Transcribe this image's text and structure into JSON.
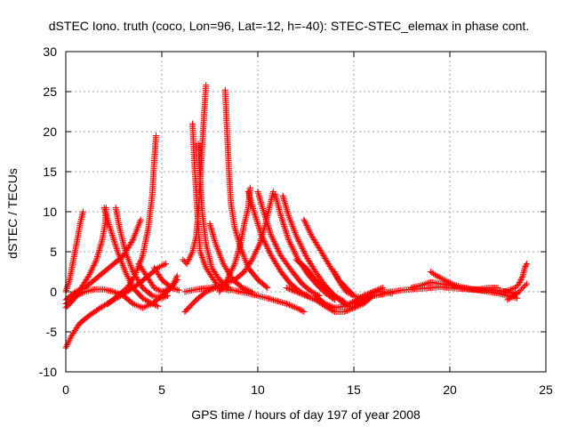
{
  "chart_data": {
    "type": "scatter",
    "title": "dSTEC Iono. truth (coco, Lon=96, Lat=-12, h=-40): STEC-STEC_elemax in phase cont.",
    "xlabel": "GPS time / hours of day 197 of year 2008",
    "ylabel": "dSTEC  / TECUs",
    "xlim": [
      0,
      25
    ],
    "ylim": [
      -10,
      30
    ],
    "xticks": [
      0,
      5,
      10,
      15,
      20,
      25
    ],
    "yticks": [
      -10,
      -5,
      0,
      5,
      10,
      15,
      20,
      25,
      30
    ],
    "xtick_labels": [
      "0",
      "5",
      "10",
      "15",
      "20",
      "25"
    ],
    "ytick_labels": [
      "-10",
      "-5",
      "0",
      "5",
      "10",
      "15",
      "20",
      "25",
      "30"
    ],
    "grid": true,
    "marker": "plus",
    "color": "#ff0000",
    "series": [
      {
        "points": [
          [
            0.0,
            -7.0
          ],
          [
            0.3,
            -5.5
          ],
          [
            0.7,
            -4.0
          ],
          [
            1.2,
            -3.0
          ],
          [
            1.8,
            -2.0
          ],
          [
            2.5,
            -1.0
          ],
          [
            3.2,
            0.0
          ],
          [
            3.8,
            1.0
          ],
          [
            4.3,
            2.0
          ],
          [
            4.8,
            3.0
          ],
          [
            5.2,
            3.5
          ]
        ]
      },
      {
        "points": [
          [
            0.0,
            -1.5
          ],
          [
            0.3,
            -1.0
          ],
          [
            0.7,
            -0.3
          ],
          [
            1.0,
            0.0
          ],
          [
            1.5,
            0.3
          ],
          [
            2.0,
            0.3
          ],
          [
            2.5,
            0.0
          ],
          [
            3.0,
            -0.5
          ],
          [
            3.5,
            -1.5
          ],
          [
            4.0,
            -2.0
          ],
          [
            4.5,
            -1.5
          ],
          [
            5.0,
            -0.5
          ],
          [
            5.5,
            0.5
          ],
          [
            5.8,
            1.5
          ]
        ]
      },
      {
        "points": [
          [
            0.0,
            -2.0
          ],
          [
            0.4,
            -1.0
          ],
          [
            0.8,
            0.5
          ],
          [
            1.2,
            2.0
          ],
          [
            1.6,
            4.0
          ],
          [
            1.9,
            6.5
          ],
          [
            2.05,
            8.5
          ],
          [
            2.1,
            10.5
          ]
        ]
      },
      {
        "points": [
          [
            0.0,
            0.0
          ],
          [
            0.2,
            1.5
          ],
          [
            0.4,
            4.0
          ],
          [
            0.6,
            6.5
          ],
          [
            0.75,
            8.5
          ],
          [
            0.9,
            10.0
          ]
        ]
      },
      {
        "points": [
          [
            0.0,
            -1.0
          ],
          [
            0.5,
            0.0
          ],
          [
            1.0,
            0.5
          ],
          [
            1.5,
            1.5
          ],
          [
            2.0,
            2.5
          ],
          [
            2.5,
            3.5
          ],
          [
            3.0,
            4.5
          ],
          [
            3.5,
            6.5
          ],
          [
            3.9,
            9.0
          ]
        ]
      },
      {
        "points": [
          [
            2.0,
            10.5
          ],
          [
            2.3,
            8.0
          ],
          [
            2.7,
            5.0
          ],
          [
            3.1,
            2.5
          ],
          [
            3.5,
            0.5
          ],
          [
            4.0,
            -0.8
          ],
          [
            4.5,
            -1.5
          ],
          [
            4.8,
            -1.8
          ]
        ]
      },
      {
        "points": [
          [
            2.6,
            10.5
          ],
          [
            2.8,
            8.0
          ],
          [
            3.1,
            5.0
          ],
          [
            3.5,
            2.5
          ],
          [
            4.0,
            0.5
          ],
          [
            4.5,
            -0.5
          ],
          [
            5.0,
            -0.8
          ],
          [
            5.3,
            -0.5
          ]
        ]
      },
      {
        "points": [
          [
            2.2,
            -1.5
          ],
          [
            2.7,
            -0.5
          ],
          [
            3.2,
            0.5
          ],
          [
            3.6,
            2.0
          ],
          [
            4.0,
            4.5
          ],
          [
            4.3,
            8.0
          ],
          [
            4.5,
            12.0
          ],
          [
            4.6,
            16.0
          ],
          [
            4.7,
            19.5
          ]
        ]
      },
      {
        "points": [
          [
            3.8,
            3.5
          ],
          [
            4.2,
            2.0
          ],
          [
            4.6,
            0.5
          ],
          [
            5.0,
            0.0
          ],
          [
            5.5,
            0.5
          ],
          [
            5.8,
            2.0
          ]
        ]
      },
      {
        "points": [
          [
            4.6,
            3.0
          ],
          [
            5.0,
            1.5
          ],
          [
            5.5,
            0.5
          ],
          [
            5.9,
            0.2
          ]
        ]
      },
      {
        "points": [
          [
            6.2,
            -2.5
          ],
          [
            6.8,
            -1.0
          ],
          [
            7.3,
            0.0
          ],
          [
            7.8,
            0.5
          ],
          [
            8.5,
            0.3
          ],
          [
            9.5,
            -0.2
          ],
          [
            10.5,
            -0.8
          ],
          [
            11.5,
            -1.5
          ],
          [
            12.0,
            -2.0
          ],
          [
            12.4,
            -2.5
          ]
        ]
      },
      {
        "points": [
          [
            6.2,
            0.0
          ],
          [
            6.8,
            0.3
          ],
          [
            7.5,
            0.5
          ],
          [
            8.0,
            0.8
          ],
          [
            8.8,
            1.5
          ],
          [
            9.3,
            2.5
          ],
          [
            9.7,
            4.0
          ],
          [
            10.1,
            6.0
          ],
          [
            10.4,
            8.5
          ],
          [
            10.6,
            10.5
          ],
          [
            10.8,
            12.5
          ]
        ]
      },
      {
        "points": [
          [
            6.6,
            21.0
          ],
          [
            6.7,
            16.0
          ],
          [
            6.8,
            12.0
          ],
          [
            6.9,
            8.0
          ],
          [
            7.0,
            5.0
          ],
          [
            7.3,
            3.0
          ],
          [
            7.7,
            1.5
          ],
          [
            8.0,
            0.5
          ],
          [
            8.5,
            0.2
          ]
        ]
      },
      {
        "points": [
          [
            6.9,
            18.5
          ],
          [
            7.0,
            14.0
          ],
          [
            7.1,
            10.0
          ],
          [
            7.3,
            6.0
          ],
          [
            7.6,
            3.0
          ],
          [
            8.0,
            1.5
          ],
          [
            8.5,
            0.5
          ]
        ]
      },
      {
        "points": [
          [
            7.3,
            25.8
          ],
          [
            7.2,
            22.0
          ],
          [
            7.1,
            18.0
          ],
          [
            7.0,
            14.0
          ],
          [
            6.9,
            10.0
          ],
          [
            6.8,
            7.0
          ],
          [
            6.6,
            5.0
          ],
          [
            6.3,
            3.5
          ],
          [
            6.1,
            4.0
          ]
        ]
      },
      {
        "points": [
          [
            8.3,
            25.2
          ],
          [
            8.4,
            20.0
          ],
          [
            8.5,
            15.0
          ],
          [
            8.6,
            11.0
          ],
          [
            8.8,
            8.0
          ],
          [
            9.1,
            5.5
          ],
          [
            9.5,
            3.0
          ],
          [
            10.0,
            1.5
          ],
          [
            10.5,
            0.5
          ]
        ]
      },
      {
        "points": [
          [
            7.5,
            8.5
          ],
          [
            7.8,
            6.0
          ],
          [
            8.2,
            3.5
          ],
          [
            8.7,
            1.5
          ],
          [
            9.2,
            0.5
          ],
          [
            9.7,
            0.0
          ]
        ]
      },
      {
        "points": [
          [
            8.0,
            0.0
          ],
          [
            8.4,
            1.5
          ],
          [
            8.8,
            3.5
          ],
          [
            9.1,
            6.0
          ],
          [
            9.3,
            8.5
          ],
          [
            9.5,
            10.5
          ],
          [
            9.6,
            13.0
          ]
        ]
      },
      {
        "points": [
          [
            9.5,
            12.5
          ],
          [
            9.8,
            10.0
          ],
          [
            10.2,
            7.0
          ],
          [
            10.7,
            4.5
          ],
          [
            11.2,
            2.5
          ],
          [
            11.7,
            1.0
          ],
          [
            12.2,
            0.0
          ],
          [
            12.6,
            -0.5
          ]
        ]
      },
      {
        "points": [
          [
            10.0,
            12.5
          ],
          [
            10.3,
            10.0
          ],
          [
            10.7,
            7.0
          ],
          [
            11.2,
            4.5
          ],
          [
            11.8,
            2.5
          ],
          [
            12.3,
            1.0
          ],
          [
            12.8,
            0.0
          ],
          [
            13.2,
            -0.5
          ]
        ]
      },
      {
        "points": [
          [
            10.9,
            12.2
          ],
          [
            11.2,
            9.5
          ],
          [
            11.6,
            6.5
          ],
          [
            12.1,
            4.0
          ],
          [
            12.6,
            2.2
          ],
          [
            13.1,
            0.8
          ],
          [
            13.6,
            -0.3
          ],
          [
            14.0,
            -1.0
          ]
        ]
      },
      {
        "points": [
          [
            11.3,
            12.0
          ],
          [
            11.6,
            9.5
          ],
          [
            12.0,
            7.0
          ],
          [
            12.5,
            4.5
          ],
          [
            13.0,
            2.5
          ],
          [
            13.5,
            0.8
          ],
          [
            14.0,
            -0.5
          ],
          [
            14.5,
            -1.2
          ]
        ]
      },
      {
        "points": [
          [
            12.4,
            9.0
          ],
          [
            12.8,
            7.0
          ],
          [
            13.3,
            5.0
          ],
          [
            13.8,
            3.0
          ],
          [
            14.2,
            1.5
          ],
          [
            14.6,
            0.5
          ],
          [
            15.0,
            -0.5
          ]
        ]
      },
      {
        "points": [
          [
            12.0,
            4.0
          ],
          [
            12.5,
            3.0
          ],
          [
            13.0,
            1.5
          ],
          [
            13.5,
            0.5
          ],
          [
            14.0,
            -0.5
          ],
          [
            14.5,
            -1.5
          ],
          [
            15.0,
            -2.0
          ],
          [
            15.5,
            -1.5
          ],
          [
            16.0,
            -0.5
          ]
        ]
      },
      {
        "points": [
          [
            11.5,
            0.5
          ],
          [
            12.0,
            0.0
          ],
          [
            12.5,
            -0.5
          ],
          [
            13.0,
            -1.0
          ],
          [
            13.5,
            -1.8
          ],
          [
            14.0,
            -2.5
          ],
          [
            14.5,
            -2.5
          ],
          [
            15.0,
            -2.0
          ],
          [
            15.5,
            -1.0
          ],
          [
            16.0,
            0.0
          ],
          [
            16.5,
            0.5
          ]
        ]
      },
      {
        "points": [
          [
            13.0,
            -0.5
          ],
          [
            13.5,
            -1.5
          ],
          [
            14.0,
            -2.0
          ],
          [
            14.5,
            -1.8
          ],
          [
            15.0,
            -1.2
          ],
          [
            15.5,
            -0.5
          ],
          [
            16.0,
            0.0
          ],
          [
            16.5,
            0.0
          ],
          [
            17.0,
            -0.2
          ]
        ]
      },
      {
        "points": [
          [
            14.0,
            2.5
          ],
          [
            14.3,
            1.0
          ],
          [
            14.6,
            0.0
          ],
          [
            15.0,
            -0.5
          ],
          [
            15.5,
            -0.8
          ],
          [
            16.0,
            -0.5
          ],
          [
            16.5,
            -0.3
          ]
        ]
      },
      {
        "points": [
          [
            15.0,
            -1.5
          ],
          [
            15.5,
            -1.0
          ],
          [
            16.0,
            -0.5
          ],
          [
            16.5,
            -0.3
          ],
          [
            17.0,
            0.0
          ]
        ]
      },
      {
        "points": [
          [
            16.5,
            0.0
          ],
          [
            17.0,
            0.0
          ],
          [
            17.5,
            0.2
          ],
          [
            18.0,
            0.3
          ],
          [
            18.5,
            0.4
          ],
          [
            19.0,
            0.5
          ],
          [
            19.5,
            0.6
          ],
          [
            20.0,
            0.5
          ],
          [
            20.5,
            0.4
          ],
          [
            21.0,
            0.3
          ],
          [
            21.5,
            0.2
          ],
          [
            22.0,
            0.0
          ],
          [
            22.5,
            -0.2
          ],
          [
            23.0,
            -0.5
          ],
          [
            23.5,
            -0.8
          ]
        ]
      },
      {
        "points": [
          [
            19.0,
            2.5
          ],
          [
            19.3,
            2.0
          ],
          [
            19.7,
            1.5
          ],
          [
            20.1,
            1.0
          ],
          [
            20.6,
            0.6
          ],
          [
            21.2,
            0.3
          ],
          [
            21.8,
            0.2
          ],
          [
            22.4,
            0.2
          ],
          [
            23.0,
            0.0
          ],
          [
            23.5,
            -0.3
          ]
        ]
      },
      {
        "points": [
          [
            18.0,
            0.5
          ],
          [
            18.5,
            0.8
          ],
          [
            19.0,
            1.2
          ],
          [
            19.5,
            1.0
          ],
          [
            20.0,
            0.8
          ],
          [
            20.5,
            0.5
          ],
          [
            21.0,
            0.3
          ],
          [
            21.5,
            0.3
          ],
          [
            22.0,
            0.5
          ],
          [
            22.5,
            0.5
          ]
        ]
      },
      {
        "points": [
          [
            22.5,
            0.0
          ],
          [
            22.8,
            0.0
          ],
          [
            23.1,
            0.2
          ],
          [
            23.4,
            0.5
          ],
          [
            23.6,
            1.0
          ],
          [
            23.8,
            2.0
          ],
          [
            23.9,
            3.0
          ],
          [
            24.0,
            3.5
          ]
        ]
      },
      {
        "points": [
          [
            23.0,
            -1.0
          ],
          [
            23.3,
            -0.5
          ],
          [
            23.6,
            0.0
          ],
          [
            23.8,
            0.5
          ],
          [
            24.0,
            1.0
          ]
        ]
      }
    ]
  }
}
